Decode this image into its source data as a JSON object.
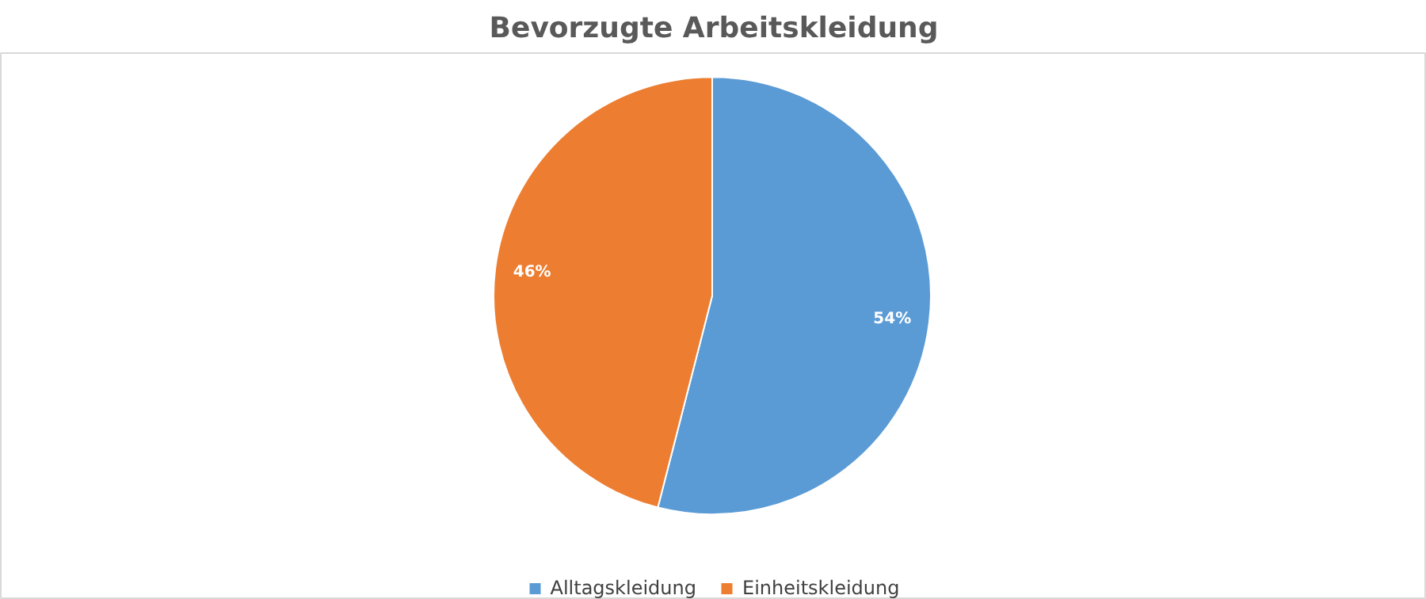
{
  "chart_data": {
    "type": "pie",
    "title": "Bevorzugte Arbeitskleidung",
    "categories": [
      "Alltagskleidung",
      "Einheitskleidung"
    ],
    "values": [
      54,
      46
    ],
    "colors": [
      "#5b9bd5",
      "#ed7d31"
    ],
    "value_labels": [
      "54%",
      "46%"
    ],
    "legend": "bottom"
  }
}
